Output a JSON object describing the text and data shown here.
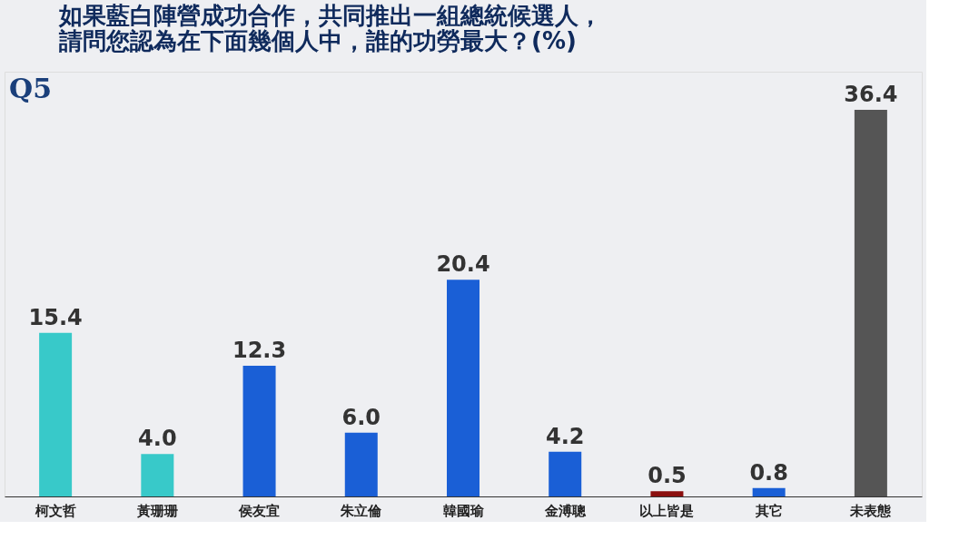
{
  "chart_data": {
    "type": "bar",
    "title": "如果藍白陣營成功合作，共同推出一組總統候選人，請問您認為在下面幾個人中，誰的功勞最大？(%)",
    "annotations": [
      "Q5"
    ],
    "categories": [
      "柯文哲",
      "黃珊珊",
      "侯友宜",
      "朱立倫",
      "韓國瑜",
      "金溥聰",
      "以上皆是",
      "其它",
      "未表態"
    ],
    "values": [
      15.4,
      4.0,
      12.3,
      6.0,
      20.4,
      4.2,
      0.5,
      0.8,
      36.4
    ],
    "colors": [
      "#38c9c9",
      "#38c9c9",
      "#1a5fd6",
      "#1a5fd6",
      "#1a5fd6",
      "#1a5fd6",
      "#8b0f0f",
      "#1a5fd6",
      "#555555"
    ],
    "value_labels": [
      "15.4",
      "4.0",
      "12.3",
      "6.0",
      "20.4",
      "4.2",
      "0.5",
      "0.8",
      "36.4"
    ]
  }
}
